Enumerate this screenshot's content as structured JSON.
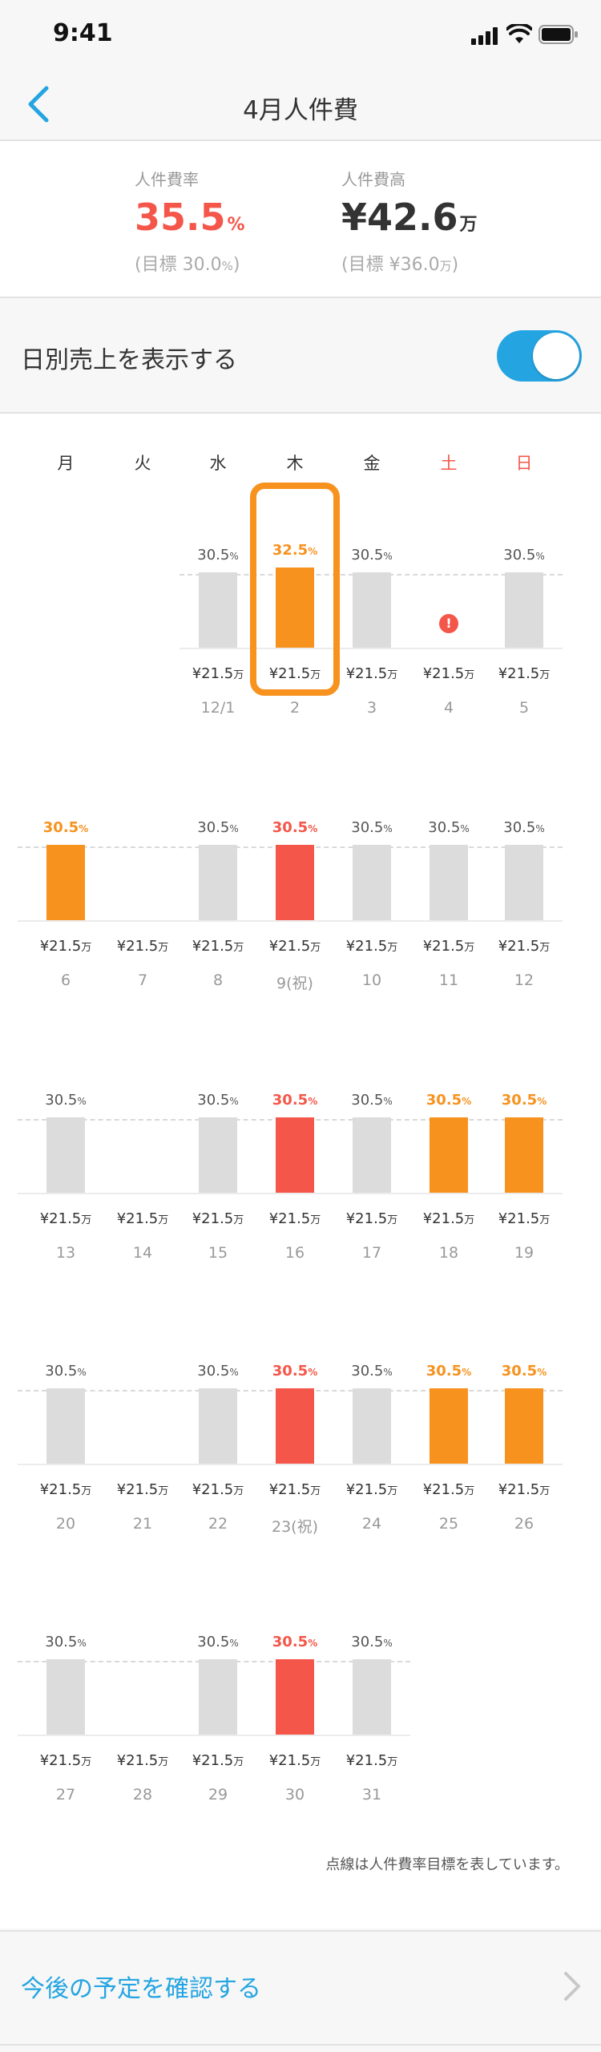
{
  "status_bar": {
    "time": "9:41"
  },
  "nav": {
    "title": "4月人件費"
  },
  "summary": {
    "rate": {
      "label": "人件費率",
      "value": "35.5",
      "unit": "%",
      "goal_prefix": "(目標 ",
      "goal_value": "30.0",
      "goal_unit": "%",
      "goal_suffix": ")"
    },
    "cost": {
      "label": "人件費高",
      "value": "¥42.6",
      "unit": "万",
      "goal_prefix": "(目標 ",
      "goal_value": "¥36.0",
      "goal_unit": "万",
      "goal_suffix": ")"
    }
  },
  "toggle": {
    "label": "日別売上を表示する",
    "on": true
  },
  "weekdays": [
    "月",
    "火",
    "水",
    "木",
    "金",
    "土",
    "日"
  ],
  "colors": {
    "accent": "#24a5e2",
    "over": "#f4574a",
    "warning": "#f7921e",
    "normal": "#dcdcdc",
    "weekend": "#f4574a",
    "highlight": "#f7921e"
  },
  "chart_data": {
    "type": "bar",
    "title": "4月人件費",
    "target_rate": 30.0,
    "money_unit": "万",
    "weeks": [
      {
        "days": [
          {
            "date": "",
            "rate": null,
            "money": ""
          },
          {
            "date": "",
            "rate": null,
            "money": ""
          },
          {
            "date": "12/1",
            "rate": 30.5,
            "label": "30.5",
            "status": "normal",
            "money": "¥21.5"
          },
          {
            "date": "2",
            "rate": 32.5,
            "label": "32.5",
            "status": "warning",
            "money": "¥21.5",
            "selected": true
          },
          {
            "date": "3",
            "rate": 30.5,
            "label": "30.5",
            "status": "normal",
            "money": "¥21.5"
          },
          {
            "date": "4",
            "rate": null,
            "status": "error",
            "money": "¥21.5"
          },
          {
            "date": "5",
            "rate": 30.5,
            "label": "30.5",
            "status": "normal",
            "money": "¥21.5"
          }
        ]
      },
      {
        "days": [
          {
            "date": "6",
            "rate": 30.5,
            "label": "30.5",
            "status": "warning",
            "money": "¥21.5"
          },
          {
            "date": "7",
            "rate": null,
            "money": "¥21.5"
          },
          {
            "date": "8",
            "rate": 30.5,
            "label": "30.5",
            "status": "normal",
            "money": "¥21.5"
          },
          {
            "date": "9(祝)",
            "rate": 30.5,
            "label": "30.5",
            "status": "over",
            "money": "¥21.5"
          },
          {
            "date": "10",
            "rate": 30.5,
            "label": "30.5",
            "status": "normal",
            "money": "¥21.5"
          },
          {
            "date": "11",
            "rate": 30.5,
            "label": "30.5",
            "status": "normal",
            "money": "¥21.5"
          },
          {
            "date": "12",
            "rate": 30.5,
            "label": "30.5",
            "status": "normal",
            "money": "¥21.5"
          }
        ]
      },
      {
        "days": [
          {
            "date": "13",
            "rate": 30.5,
            "label": "30.5",
            "status": "normal",
            "money": "¥21.5"
          },
          {
            "date": "14",
            "rate": null,
            "money": "¥21.5"
          },
          {
            "date": "15",
            "rate": 30.5,
            "label": "30.5",
            "status": "normal",
            "money": "¥21.5"
          },
          {
            "date": "16",
            "rate": 30.5,
            "label": "30.5",
            "status": "over",
            "money": "¥21.5"
          },
          {
            "date": "17",
            "rate": 30.5,
            "label": "30.5",
            "status": "normal",
            "money": "¥21.5"
          },
          {
            "date": "18",
            "rate": 30.5,
            "label": "30.5",
            "status": "warning",
            "money": "¥21.5"
          },
          {
            "date": "19",
            "rate": 30.5,
            "label": "30.5",
            "status": "warning",
            "money": "¥21.5"
          }
        ]
      },
      {
        "days": [
          {
            "date": "20",
            "rate": 30.5,
            "label": "30.5",
            "status": "normal",
            "money": "¥21.5"
          },
          {
            "date": "21",
            "rate": null,
            "money": "¥21.5"
          },
          {
            "date": "22",
            "rate": 30.5,
            "label": "30.5",
            "status": "normal",
            "money": "¥21.5"
          },
          {
            "date": "23(祝)",
            "rate": 30.5,
            "label": "30.5",
            "status": "over",
            "money": "¥21.5"
          },
          {
            "date": "24",
            "rate": 30.5,
            "label": "30.5",
            "status": "normal",
            "money": "¥21.5"
          },
          {
            "date": "25",
            "rate": 30.5,
            "label": "30.5",
            "status": "warning",
            "money": "¥21.5"
          },
          {
            "date": "26",
            "rate": 30.5,
            "label": "30.5",
            "status": "warning",
            "money": "¥21.5"
          }
        ]
      },
      {
        "days": [
          {
            "date": "27",
            "rate": 30.5,
            "label": "30.5",
            "status": "normal",
            "money": "¥21.5"
          },
          {
            "date": "28",
            "rate": null,
            "money": "¥21.5"
          },
          {
            "date": "29",
            "rate": 30.5,
            "label": "30.5",
            "status": "normal",
            "money": "¥21.5"
          },
          {
            "date": "30",
            "rate": 30.5,
            "label": "30.5",
            "status": "over",
            "money": "¥21.5"
          },
          {
            "date": "31",
            "rate": 30.5,
            "label": "30.5",
            "status": "normal",
            "money": "¥21.5"
          }
        ]
      }
    ]
  },
  "legend_note": "点線は人件費率目標を表しています。",
  "future_link": {
    "label": "今後の予定を確認する"
  }
}
